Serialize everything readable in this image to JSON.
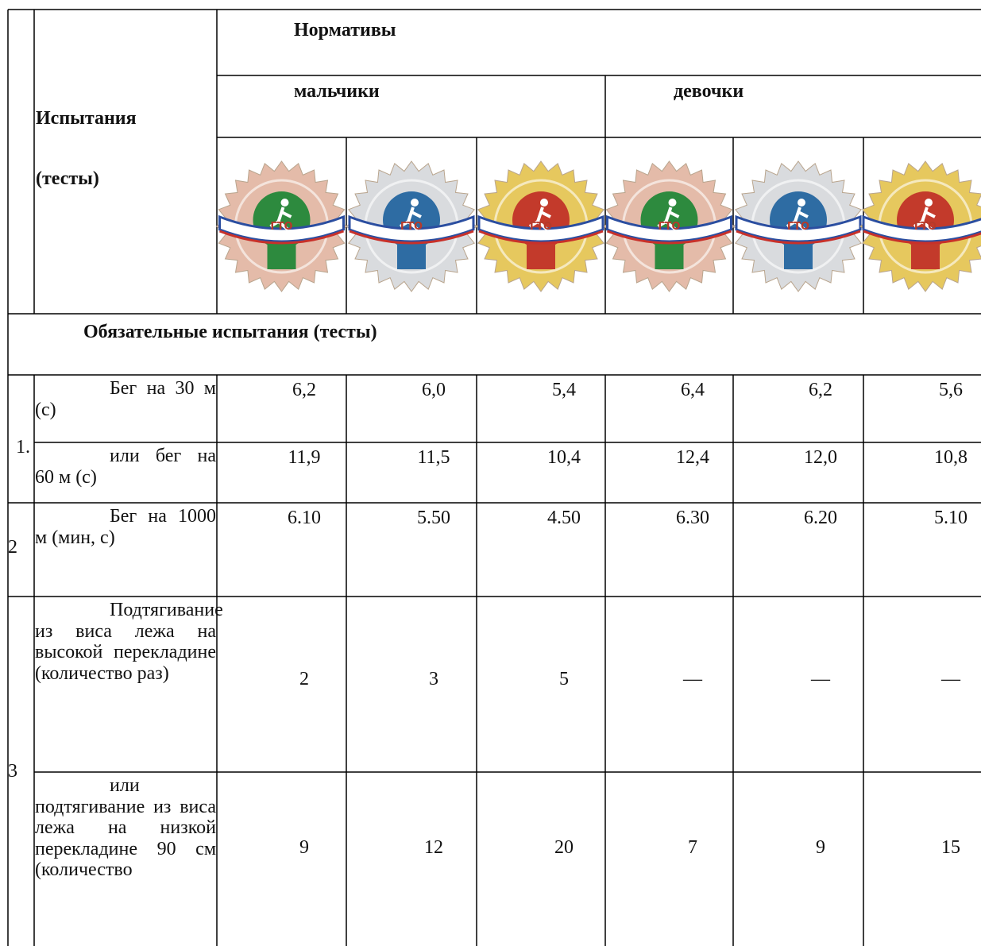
{
  "header": {
    "tests_label": [
      "Испытания",
      "(тесты)"
    ],
    "norms": "Нормативы",
    "groups": [
      "мальчики",
      "девочки"
    ],
    "badges": [
      {
        "label": "ГТО"
      },
      {
        "label": "ГТО"
      },
      {
        "label": "ГТО"
      },
      {
        "label": "ГТО"
      },
      {
        "label": "ГТО"
      },
      {
        "label": "ГТО"
      }
    ]
  },
  "section": "Обязательные испытания (тесты)",
  "rows": [
    {
      "number": "1.",
      "tests": [
        {
          "name": "Бег на 30 м (с)",
          "values": [
            "6,2",
            "6,0",
            "5,4",
            "6,4",
            "6,2",
            "5,6"
          ]
        },
        {
          "name": "или бег на 60 м (с)",
          "values": [
            "11,9",
            "11,5",
            "10,4",
            "12,4",
            "12,0",
            "10,8"
          ]
        }
      ]
    },
    {
      "number": "2",
      "tests": [
        {
          "name": "Бег на 1000 м (мин, с)",
          "values": [
            "6.10",
            "5.50",
            "4.50",
            "6.30",
            "6.20",
            "5.10"
          ]
        }
      ]
    },
    {
      "number": "3",
      "tests": [
        {
          "name": "Подтягивание из виса лежа на высокой перекладине (количество раз)",
          "values": [
            "2",
            "3",
            "5",
            "—",
            "—",
            "—"
          ]
        },
        {
          "name": "или подтягивание из виса лежа на низкой перекладине 90 см (количество",
          "values": [
            "9",
            "12",
            "20",
            "7",
            "9",
            "15"
          ]
        }
      ]
    }
  ]
}
